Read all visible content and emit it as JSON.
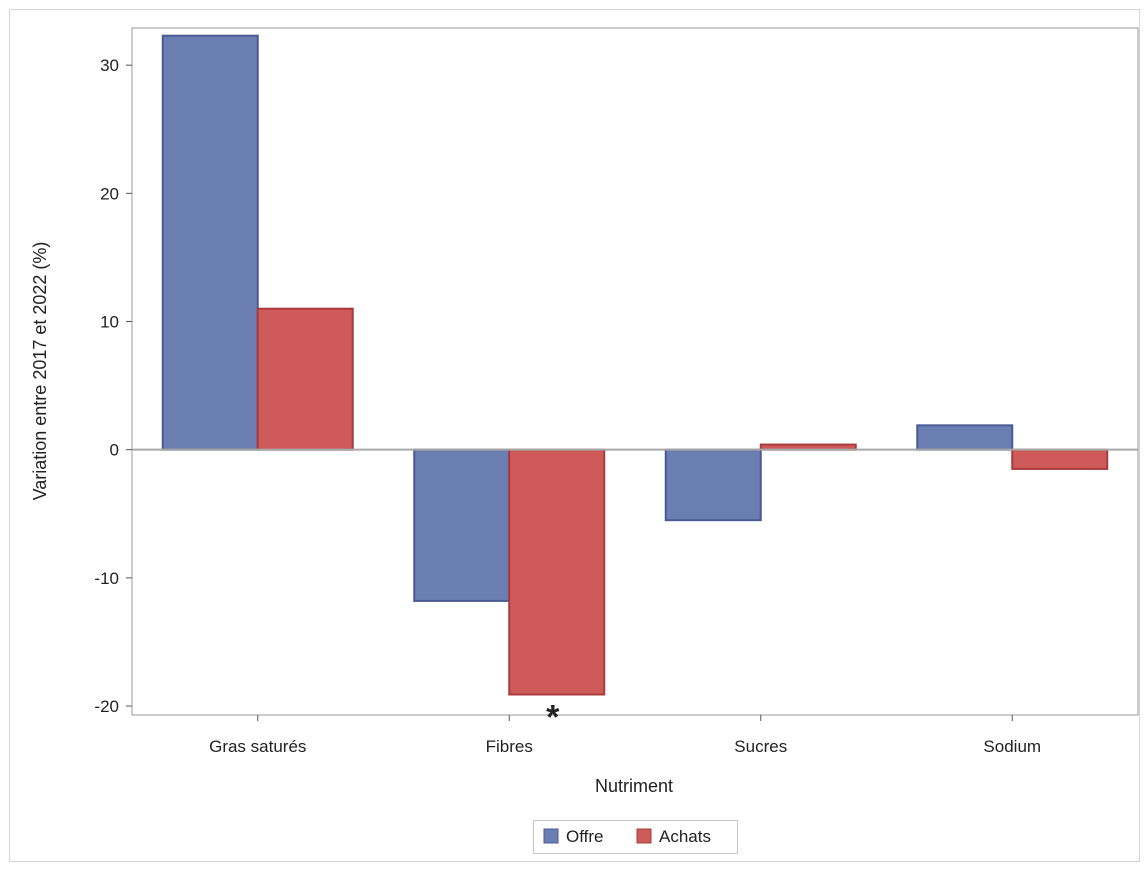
{
  "chart_data": {
    "type": "bar",
    "xlabel": "Nutriment",
    "ylabel": "Variation entre 2017 et 2022 (%)",
    "categories": [
      "Gras saturés",
      "Fibres",
      "Sucres",
      "Sodium"
    ],
    "series": [
      {
        "name": "Offre",
        "color": "#6b7eb2",
        "values": [
          32.3,
          -11.8,
          -5.5,
          1.9
        ]
      },
      {
        "name": "Achats",
        "color": "#cf5a5a",
        "values": [
          11.0,
          -19.1,
          0.4,
          -1.5
        ]
      }
    ],
    "ylim": [
      -20.7,
      32.9
    ],
    "yticks": [
      -20,
      -10,
      0,
      10,
      20,
      30
    ],
    "annotations": [
      {
        "text": "*",
        "category": "Fibres",
        "series": "Achats"
      }
    ],
    "legend_position": "bottom",
    "grid": false
  }
}
